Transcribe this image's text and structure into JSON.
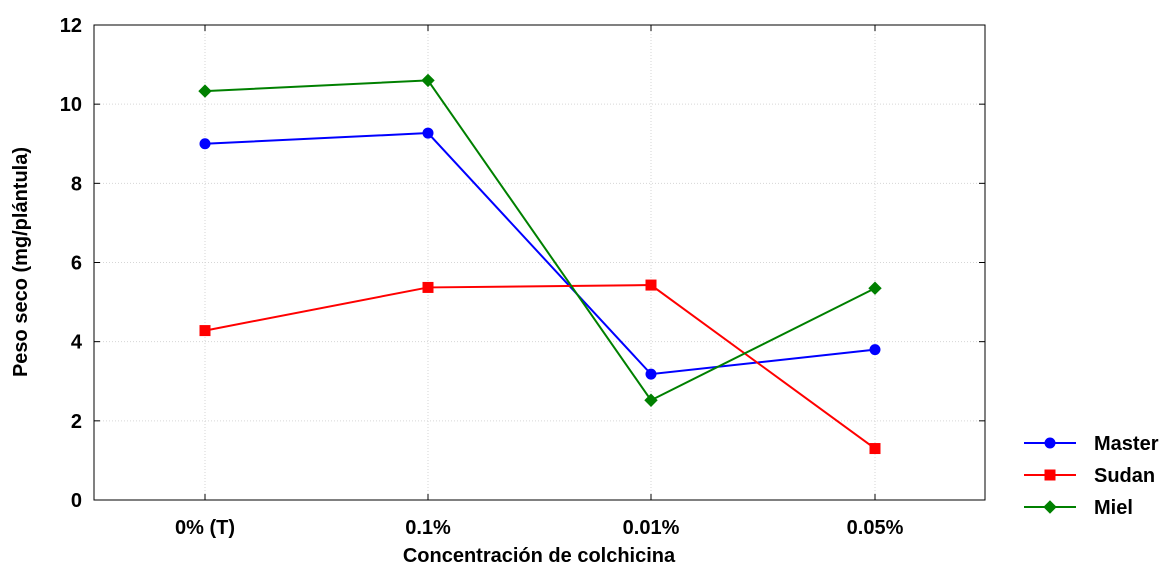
{
  "chart_data": {
    "type": "line",
    "title": "",
    "xlabel": "Concentración de colchicina",
    "ylabel": "Peso seco (mg/plántula)",
    "categories": [
      "0% (T)",
      "0.1%",
      "0.01%",
      "0.05%"
    ],
    "ylim": [
      0,
      12
    ],
    "yticks": [
      "0",
      "2",
      "4",
      "6",
      "8",
      "10",
      "12"
    ],
    "grid": true,
    "legend_position": "bottom-right, outside plot",
    "series": [
      {
        "name": "Master",
        "color": "#0000ff",
        "marker": "circle",
        "values": [
          9.0,
          9.27,
          3.18,
          3.8
        ]
      },
      {
        "name": "Sudan",
        "color": "#ff0000",
        "marker": "square",
        "values": [
          4.28,
          5.37,
          5.43,
          1.3
        ]
      },
      {
        "name": "Miel",
        "color": "#008000",
        "marker": "diamond",
        "values": [
          10.33,
          10.6,
          2.52,
          5.35
        ]
      }
    ]
  }
}
